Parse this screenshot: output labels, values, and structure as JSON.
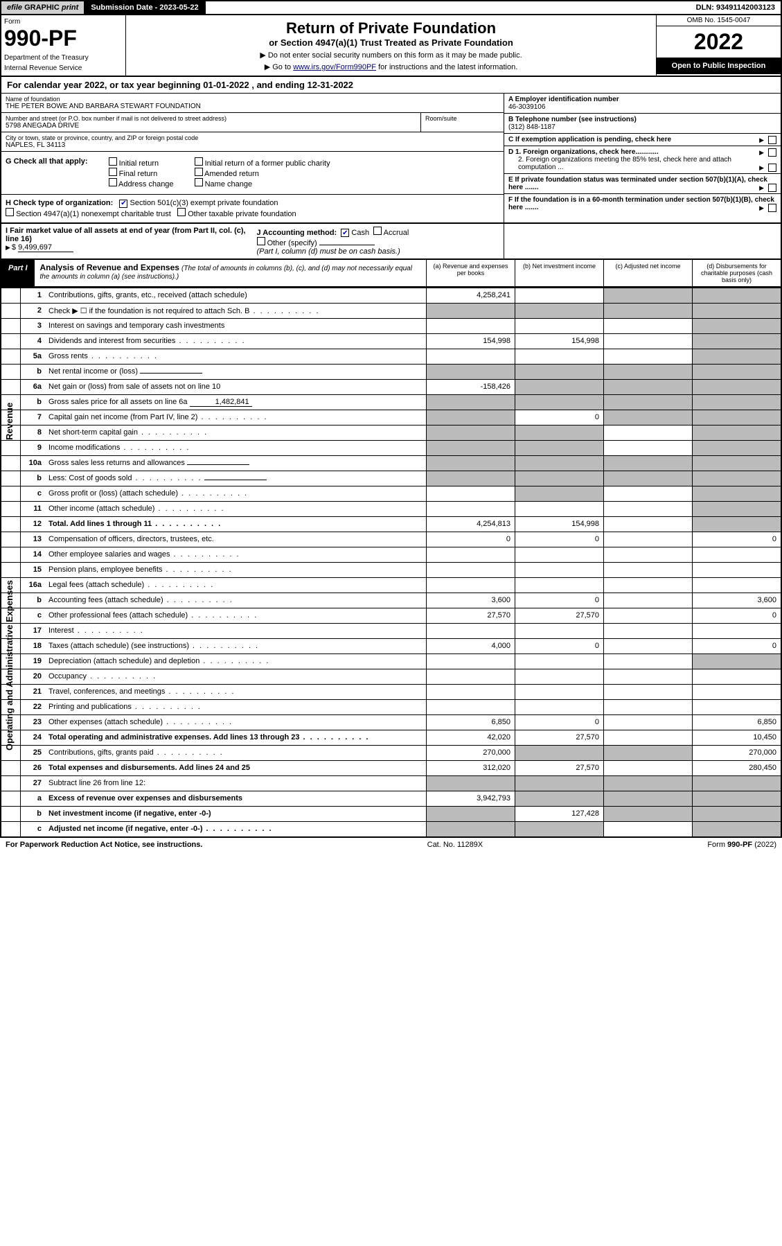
{
  "top": {
    "efile_prefix": "efile",
    "efile_graphic": "GRAPHIC",
    "efile_print": "print",
    "submission_label": "Submission Date - 2023-05-22",
    "dln": "DLN: 93491142003123"
  },
  "header": {
    "form_label": "Form",
    "form_number": "990-PF",
    "dept": "Department of the Treasury",
    "irs": "Internal Revenue Service",
    "title": "Return of Private Foundation",
    "subtitle": "or Section 4947(a)(1) Trust Treated as Private Foundation",
    "instr1": "▶ Do not enter social security numbers on this form as it may be made public.",
    "instr2_pre": "▶ Go to ",
    "instr2_link": "www.irs.gov/Form990PF",
    "instr2_post": " for instructions and the latest information.",
    "omb": "OMB No. 1545-0047",
    "year": "2022",
    "open": "Open to Public Inspection"
  },
  "cal_year": {
    "pre": "For calendar year 2022, or tax year beginning ",
    "begin": "01-01-2022",
    "mid": " , and ending ",
    "end": "12-31-2022"
  },
  "foundation": {
    "name_label": "Name of foundation",
    "name": "THE PETER BOWE AND BARBARA STEWART FOUNDATION",
    "addr_label": "Number and street (or P.O. box number if mail is not delivered to street address)",
    "addr": "5798 ANEGADA DRIVE",
    "room_label": "Room/suite",
    "city_label": "City or town, state or province, country, and ZIP or foreign postal code",
    "city": "NAPLES, FL  34113",
    "ein_label": "A Employer identification number",
    "ein": "46-3039106",
    "phone_label": "B Telephone number (see instructions)",
    "phone": "(312) 848-1187",
    "c_label": "C If exemption application is pending, check here",
    "d1": "D 1. Foreign organizations, check here............",
    "d2": "2. Foreign organizations meeting the 85% test, check here and attach computation ...",
    "e_label": "E  If private foundation status was terminated under section 507(b)(1)(A), check here .......",
    "f_label": "F  If the foundation is in a 60-month termination under section 507(b)(1)(B), check here .......",
    "g_label": "G Check all that apply:",
    "g_opts": [
      "Initial return",
      "Final return",
      "Address change",
      "Initial return of a former public charity",
      "Amended return",
      "Name change"
    ],
    "h_label": "H Check type of organization:",
    "h_opts": [
      "Section 501(c)(3) exempt private foundation",
      "Section 4947(a)(1) nonexempt charitable trust",
      "Other taxable private foundation"
    ],
    "i_label": "I Fair market value of all assets at end of year (from Part II, col. (c), line 16)",
    "i_value": "9,499,697",
    "j_label": "J Accounting method:",
    "j_opts": [
      "Cash",
      "Accrual",
      "Other (specify)"
    ],
    "j_note": "(Part I, column (d) must be on cash basis.)"
  },
  "part1": {
    "label": "Part I",
    "title": "Analysis of Revenue and Expenses",
    "note": "(The total of amounts in columns (b), (c), and (d) may not necessarily equal the amounts in column (a) (see instructions).)",
    "cols": [
      "(a)   Revenue and expenses per books",
      "(b)   Net investment income",
      "(c)   Adjusted net income",
      "(d)   Disbursements for charitable purposes (cash basis only)"
    ]
  },
  "sides": {
    "revenue": "Revenue",
    "expenses": "Operating and Administrative Expenses"
  },
  "rows": [
    {
      "n": "1",
      "d": "Contributions, gifts, grants, etc., received (attach schedule)",
      "a": "4,258,241",
      "bg": false,
      "cg": true,
      "dg": true
    },
    {
      "n": "2",
      "d": "Check ▶ ☐ if the foundation is not required to attach Sch. B",
      "dots": true,
      "ag": true,
      "bg": true,
      "cg": true,
      "dg": true
    },
    {
      "n": "3",
      "d": "Interest on savings and temporary cash investments",
      "dg": true
    },
    {
      "n": "4",
      "d": "Dividends and interest from securities",
      "dots": true,
      "a": "154,998",
      "b": "154,998",
      "dg": true
    },
    {
      "n": "5a",
      "d": "Gross rents",
      "dots": true,
      "dg": true
    },
    {
      "n": "b",
      "d": "Net rental income or (loss)",
      "inline": "",
      "ag": true,
      "bg": true,
      "cg": true,
      "dg": true
    },
    {
      "n": "6a",
      "d": "Net gain or (loss) from sale of assets not on line 10",
      "a": "-158,426",
      "bg": true,
      "cg": true,
      "dg": true
    },
    {
      "n": "b",
      "d": "Gross sales price for all assets on line 6a",
      "inline": "1,482,841",
      "ag": true,
      "bg": true,
      "cg": true,
      "dg": true
    },
    {
      "n": "7",
      "d": "Capital gain net income (from Part IV, line 2)",
      "dots": true,
      "ag": true,
      "b": "0",
      "cg": true,
      "dg": true
    },
    {
      "n": "8",
      "d": "Net short-term capital gain",
      "dots": true,
      "ag": true,
      "bg": true,
      "dg": true
    },
    {
      "n": "9",
      "d": "Income modifications",
      "dots": true,
      "ag": true,
      "bg": true,
      "dg": true
    },
    {
      "n": "10a",
      "d": "Gross sales less returns and allowances",
      "inline": "",
      "ag": true,
      "bg": true,
      "cg": true,
      "dg": true
    },
    {
      "n": "b",
      "d": "Less: Cost of goods sold",
      "dots": true,
      "inline": "",
      "ag": true,
      "bg": true,
      "cg": true,
      "dg": true
    },
    {
      "n": "c",
      "d": "Gross profit or (loss) (attach schedule)",
      "dots": true,
      "bg": true,
      "dg": true
    },
    {
      "n": "11",
      "d": "Other income (attach schedule)",
      "dots": true,
      "dg": true
    },
    {
      "n": "12",
      "d": "Total. Add lines 1 through 11",
      "dots": true,
      "bold": true,
      "a": "4,254,813",
      "b": "154,998",
      "dg": true
    }
  ],
  "exp_rows": [
    {
      "n": "13",
      "d": "Compensation of officers, directors, trustees, etc.",
      "a": "0",
      "b": "0",
      "dd": "0"
    },
    {
      "n": "14",
      "d": "Other employee salaries and wages",
      "dots": true
    },
    {
      "n": "15",
      "d": "Pension plans, employee benefits",
      "dots": true
    },
    {
      "n": "16a",
      "d": "Legal fees (attach schedule)",
      "dots": true
    },
    {
      "n": "b",
      "d": "Accounting fees (attach schedule)",
      "dots": true,
      "a": "3,600",
      "b": "0",
      "dd": "3,600"
    },
    {
      "n": "c",
      "d": "Other professional fees (attach schedule)",
      "dots": true,
      "a": "27,570",
      "b": "27,570",
      "dd": "0"
    },
    {
      "n": "17",
      "d": "Interest",
      "dots": true
    },
    {
      "n": "18",
      "d": "Taxes (attach schedule) (see instructions)",
      "dots": true,
      "a": "4,000",
      "b": "0",
      "dd": "0"
    },
    {
      "n": "19",
      "d": "Depreciation (attach schedule) and depletion",
      "dots": true,
      "dg": true
    },
    {
      "n": "20",
      "d": "Occupancy",
      "dots": true
    },
    {
      "n": "21",
      "d": "Travel, conferences, and meetings",
      "dots": true
    },
    {
      "n": "22",
      "d": "Printing and publications",
      "dots": true
    },
    {
      "n": "23",
      "d": "Other expenses (attach schedule)",
      "dots": true,
      "a": "6,850",
      "b": "0",
      "dd": "6,850"
    },
    {
      "n": "24",
      "d": "Total operating and administrative expenses. Add lines 13 through 23",
      "dots": true,
      "bold": true,
      "a": "42,020",
      "b": "27,570",
      "dd": "10,450"
    },
    {
      "n": "25",
      "d": "Contributions, gifts, grants paid",
      "dots": true,
      "a": "270,000",
      "bg": true,
      "cg": true,
      "dd": "270,000"
    },
    {
      "n": "26",
      "d": "Total expenses and disbursements. Add lines 24 and 25",
      "bold": true,
      "a": "312,020",
      "b": "27,570",
      "dd": "280,450"
    }
  ],
  "final_rows": [
    {
      "n": "27",
      "d": "Subtract line 26 from line 12:",
      "ag": true,
      "bg": true,
      "cg": true,
      "dg": true
    },
    {
      "n": "a",
      "d": "Excess of revenue over expenses and disbursements",
      "bold": true,
      "a": "3,942,793",
      "bg": true,
      "cg": true,
      "dg": true
    },
    {
      "n": "b",
      "d": "Net investment income (if negative, enter -0-)",
      "bold": true,
      "ag": true,
      "b": "127,428",
      "cg": true,
      "dg": true
    },
    {
      "n": "c",
      "d": "Adjusted net income (if negative, enter -0-)",
      "bold": true,
      "dots": true,
      "ag": true,
      "bg": true,
      "dg": true
    }
  ],
  "footer": {
    "left": "For Paperwork Reduction Act Notice, see instructions.",
    "mid": "Cat. No. 11289X",
    "right": "Form 990-PF (2022)"
  }
}
